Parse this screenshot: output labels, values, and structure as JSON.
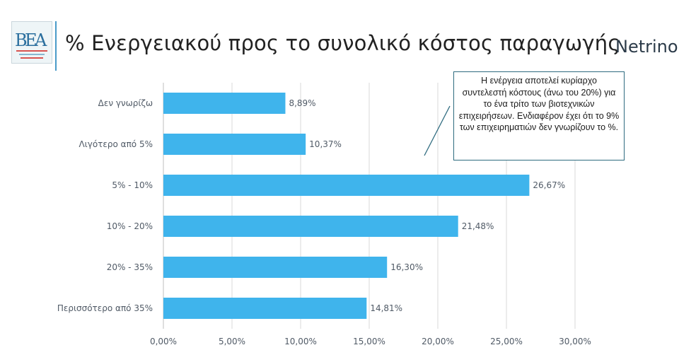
{
  "header": {
    "title": "% Ενεργειακού προς το συνολικό κόστος παραγωγής",
    "logo_text": "ΒΕΑ",
    "brand_name": "Netrino"
  },
  "callout": {
    "text": "Η ενέργεια αποτελεί κυρίαρχο συντελεστή κόστους (άνω του 20%) για το ένα τρίτο των βιοτεχνικών επιχειρήσεων. Ενδιαφέρον έχει ότι το 9% των επιχειρηματιών δεν γνωρίζουν το %."
  },
  "colors": {
    "bar": "#3fb4ec",
    "grid": "#d9d9d9",
    "label_text": "#505a66",
    "accent_line": "#2e6b7f"
  },
  "chart_data": {
    "type": "bar",
    "orientation": "horizontal",
    "categories": [
      "Δεν γνωρίζω",
      "Λιγότερο από 5%",
      "5% - 10%",
      "10% - 20%",
      "20% - 35%",
      "Περισσότερο από 35%"
    ],
    "values": [
      8.89,
      10.37,
      26.67,
      21.48,
      16.3,
      14.81
    ],
    "value_labels": [
      "8,89%",
      "10,37%",
      "26,67%",
      "21,48%",
      "16,30%",
      "14,81%"
    ],
    "x_ticks": [
      "0,00%",
      "5,00%",
      "10,00%",
      "15,00%",
      "20,00%",
      "25,00%",
      "30,00%"
    ],
    "xlim": [
      0,
      30
    ],
    "grid": true,
    "legend": "none"
  }
}
